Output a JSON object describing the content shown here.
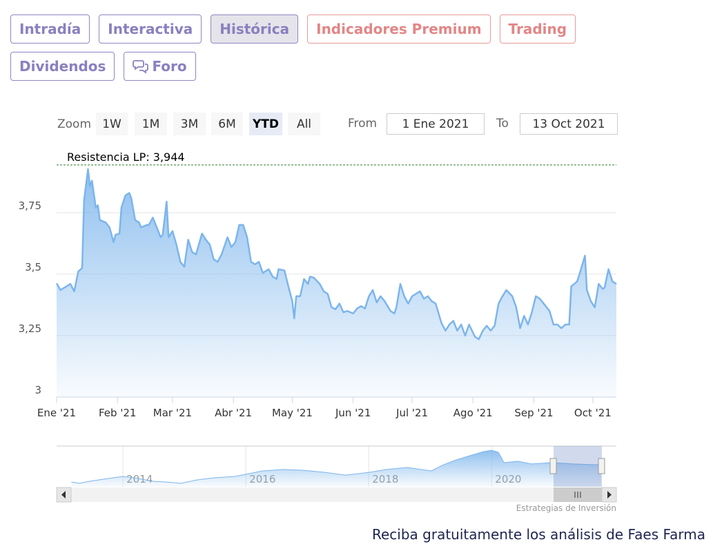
{
  "tabs": [
    "Intradía",
    "Interactiva",
    "Histórica",
    "Indicadores Premium",
    "Trading",
    "Dividendos",
    "Foro"
  ],
  "zoom": {
    "label": "Zoom",
    "buttons": [
      "1W",
      "1M",
      "3M",
      "6M",
      "YTD",
      "All"
    ]
  },
  "range": {
    "from_label": "From",
    "from": "1 Ene 2021",
    "to_label": "To",
    "to": "13 Oct 2021"
  },
  "chart_data": {
    "type": "area",
    "color": "#7cb5ec",
    "grid": true,
    "x": [
      0,
      2,
      5,
      7,
      9,
      11,
      13,
      14,
      16,
      17,
      18,
      20,
      21,
      22,
      25,
      27,
      29,
      30,
      32,
      33,
      35,
      37,
      38,
      40,
      42,
      43,
      46,
      47,
      49,
      51,
      53,
      54,
      56,
      57,
      59,
      61,
      63,
      65,
      67,
      69,
      71,
      74,
      76,
      78,
      80,
      82,
      84,
      87,
      89,
      91,
      93,
      95,
      97,
      99,
      101,
      103,
      105,
      108,
      110,
      112,
      113,
      116,
      118,
      120,
      121,
      122,
      124,
      126,
      128,
      129,
      131,
      134,
      136,
      138,
      140,
      142,
      144,
      146,
      148,
      151,
      153,
      155,
      157,
      159,
      161,
      163,
      165,
      167,
      170,
      172,
      173,
      175,
      177,
      179,
      181,
      183,
      185,
      187,
      189,
      191,
      193,
      196,
      198,
      200,
      202,
      204,
      206,
      208,
      210,
      213,
      215,
      217,
      219,
      221,
      223,
      225,
      227,
      229,
      232,
      234,
      236,
      238,
      240,
      242,
      244,
      246,
      248,
      251,
      253,
      255,
      257,
      259,
      261,
      262,
      265,
      267,
      269,
      270,
      272,
      274,
      276,
      278,
      279,
      281,
      283,
      285
    ],
    "values": [
      3.463,
      3.435,
      3.45,
      3.46,
      3.43,
      3.51,
      3.525,
      3.8,
      3.927,
      3.857,
      3.88,
      3.77,
      3.78,
      3.72,
      3.71,
      3.69,
      3.63,
      3.66,
      3.665,
      3.77,
      3.82,
      3.83,
      3.81,
      3.72,
      3.71,
      3.69,
      3.7,
      3.7,
      3.73,
      3.69,
      3.65,
      3.66,
      3.795,
      3.65,
      3.675,
      3.62,
      3.55,
      3.53,
      3.64,
      3.59,
      3.58,
      3.665,
      3.64,
      3.62,
      3.56,
      3.55,
      3.58,
      3.65,
      3.61,
      3.63,
      3.7,
      3.7,
      3.65,
      3.55,
      3.54,
      3.55,
      3.505,
      3.52,
      3.49,
      3.48,
      3.52,
      3.515,
      3.45,
      3.39,
      3.32,
      3.41,
      3.41,
      3.48,
      3.46,
      3.49,
      3.485,
      3.46,
      3.43,
      3.42,
      3.365,
      3.357,
      3.38,
      3.345,
      3.35,
      3.34,
      3.36,
      3.37,
      3.36,
      3.41,
      3.435,
      3.385,
      3.41,
      3.39,
      3.35,
      3.34,
      3.365,
      3.46,
      3.41,
      3.38,
      3.41,
      3.42,
      3.43,
      3.4,
      3.41,
      3.39,
      3.38,
      3.3,
      3.27,
      3.295,
      3.31,
      3.27,
      3.295,
      3.25,
      3.295,
      3.245,
      3.235,
      3.27,
      3.29,
      3.27,
      3.29,
      3.38,
      3.41,
      3.435,
      3.41,
      3.365,
      3.28,
      3.33,
      3.295,
      3.345,
      3.41,
      3.4,
      3.38,
      3.35,
      3.295,
      3.295,
      3.28,
      3.295,
      3.295,
      3.45,
      3.47,
      3.52,
      3.575,
      3.435,
      3.39,
      3.365,
      3.46,
      3.44,
      3.445,
      3.52,
      3.47,
      3.46
    ],
    "xlim": [
      0,
      285
    ],
    "ylim": [
      3,
      4
    ],
    "xticks": [
      {
        "value": 0,
        "label": "Ene '21"
      },
      {
        "value": 31,
        "label": "Feb '21"
      },
      {
        "value": 59,
        "label": "Mar '21"
      },
      {
        "value": 90,
        "label": "Abr '21"
      },
      {
        "value": 120,
        "label": "May '21"
      },
      {
        "value": 151,
        "label": "Jun '21"
      },
      {
        "value": 181,
        "label": "Jul '21"
      },
      {
        "value": 212,
        "label": "Ago '21"
      },
      {
        "value": 243,
        "label": "Sep '21"
      },
      {
        "value": 273,
        "label": "Oct '21"
      }
    ],
    "yticks": [
      3,
      {
        "value": 3.25,
        "label": "3,25"
      },
      {
        "value": 3.5,
        "label": "3,5"
      },
      {
        "value": 3.75,
        "label": "3,75"
      }
    ],
    "resistance": {
      "label": "Resistencia LP: 3,944",
      "value": 3.944,
      "color": "#2e7d32"
    },
    "navigator": {
      "x": [
        2013.16,
        2013.29,
        2013.46,
        2013.69,
        2014.0,
        2014.25,
        2014.47,
        2014.7,
        2014.94,
        2015.2,
        2015.48,
        2015.82,
        2016.0,
        2016.27,
        2016.61,
        2016.94,
        2017.28,
        2017.62,
        2017.84,
        2018.01,
        2018.29,
        2018.63,
        2018.85,
        2019.02,
        2019.19,
        2019.42,
        2019.64,
        2019.87,
        2020.0,
        2020.11,
        2020.2,
        2020.43,
        2020.65,
        2020.99,
        2021.33,
        2021.69,
        2021.78
      ],
      "values": [
        1.83,
        1.71,
        1.89,
        2.08,
        2.32,
        2.14,
        1.89,
        1.83,
        1.71,
        2.01,
        2.2,
        2.32,
        2.51,
        2.81,
        2.94,
        2.87,
        2.69,
        2.44,
        2.57,
        2.69,
        2.94,
        3.12,
        2.94,
        2.81,
        3.3,
        3.79,
        4.16,
        4.53,
        4.65,
        4.47,
        3.55,
        3.67,
        3.43,
        3.55,
        3.43,
        3.36,
        3.43
      ],
      "xlim": [
        2012.92,
        2022.03
      ],
      "ylim": [
        1.4,
        4.9
      ],
      "xticks": [
        2014,
        2016,
        2018,
        2020
      ]
    }
  },
  "credit": "Estrategias de Inversión",
  "footer": "Reciba gratuitamente los análisis de Faes Farma"
}
